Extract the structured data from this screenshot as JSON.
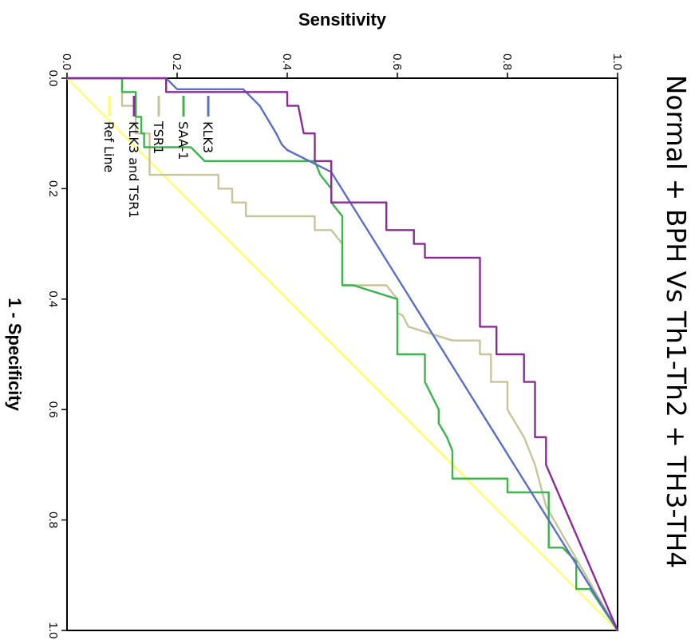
{
  "chart_data": {
    "type": "line",
    "title": "Normal + BPH Vs Th1-Th2 + TH3-TH4",
    "xlabel": "1 - Specificity",
    "ylabel": "Sensitivity",
    "xlim": [
      0,
      1
    ],
    "ylim": [
      0,
      1
    ],
    "xticks": [
      "0.0",
      "0.2",
      "0.4",
      "0.6",
      "0.8",
      "1.0"
    ],
    "yticks": [
      "0.0",
      "0.2",
      "0.4",
      "0.6",
      "0.8",
      "1.0"
    ],
    "grid": false,
    "legend_position": "bottom-left",
    "series": [
      {
        "name": "KLK3",
        "color": "#5a6fc4",
        "points": [
          [
            0,
            0
          ],
          [
            0,
            0.18
          ],
          [
            0.02,
            0.2
          ],
          [
            0.02,
            0.32
          ],
          [
            0.05,
            0.35
          ],
          [
            0.1,
            0.38
          ],
          [
            0.1,
            0.38
          ],
          [
            0.12,
            0.39
          ],
          [
            0.13,
            0.4
          ],
          [
            0.15,
            0.44
          ],
          [
            0.17,
            0.48
          ],
          [
            1,
            1
          ]
        ]
      },
      {
        "name": "SAA-1",
        "color": "#39b54a",
        "points": [
          [
            0,
            0
          ],
          [
            0,
            0.1
          ],
          [
            0.025,
            0.1
          ],
          [
            0.025,
            0.125
          ],
          [
            0.07,
            0.125
          ],
          [
            0.07,
            0.135
          ],
          [
            0.1,
            0.135
          ],
          [
            0.1,
            0.14
          ],
          [
            0.125,
            0.14
          ],
          [
            0.125,
            0.225
          ],
          [
            0.125,
            0.225
          ],
          [
            0.15,
            0.25
          ],
          [
            0.15,
            0.45
          ],
          [
            0.15,
            0.45
          ],
          [
            0.175,
            0.46
          ],
          [
            0.2,
            0.48
          ],
          [
            0.2,
            0.48
          ],
          [
            0.225,
            0.48
          ],
          [
            0.25,
            0.5
          ],
          [
            0.25,
            0.5
          ],
          [
            0.3,
            0.5
          ],
          [
            0.375,
            0.5
          ],
          [
            0.375,
            0.52
          ],
          [
            0.4,
            0.6
          ],
          [
            0.5,
            0.6
          ],
          [
            0.5,
            0.65
          ],
          [
            0.55,
            0.65
          ],
          [
            0.6,
            0.675
          ],
          [
            0.625,
            0.675
          ],
          [
            0.65,
            0.69
          ],
          [
            0.675,
            0.7
          ],
          [
            0.725,
            0.7
          ],
          [
            0.725,
            0.8
          ],
          [
            0.75,
            0.8
          ],
          [
            0.75,
            0.875
          ],
          [
            0.85,
            0.875
          ],
          [
            0.85,
            0.9
          ],
          [
            0.875,
            0.925
          ],
          [
            0.925,
            0.925
          ],
          [
            0.925,
            0.95
          ],
          [
            1,
            1
          ]
        ]
      },
      {
        "name": "TSR1",
        "color": "#c8c49a",
        "points": [
          [
            0,
            0
          ],
          [
            0,
            0.1
          ],
          [
            0.05,
            0.1
          ],
          [
            0.05,
            0.125
          ],
          [
            0.1,
            0.125
          ],
          [
            0.1,
            0.15
          ],
          [
            0.175,
            0.15
          ],
          [
            0.175,
            0.275
          ],
          [
            0.2,
            0.275
          ],
          [
            0.2,
            0.3
          ],
          [
            0.225,
            0.3
          ],
          [
            0.225,
            0.325
          ],
          [
            0.25,
            0.325
          ],
          [
            0.25,
            0.45
          ],
          [
            0.275,
            0.45
          ],
          [
            0.275,
            0.48
          ],
          [
            0.3,
            0.5
          ],
          [
            0.3,
            0.5
          ],
          [
            0.375,
            0.5
          ],
          [
            0.375,
            0.52
          ],
          [
            0.375,
            0.58
          ],
          [
            0.4,
            0.6
          ],
          [
            0.425,
            0.6
          ],
          [
            0.43,
            0.61
          ],
          [
            0.45,
            0.62
          ],
          [
            0.475,
            0.7
          ],
          [
            0.475,
            0.75
          ],
          [
            0.5,
            0.75
          ],
          [
            0.5,
            0.77
          ],
          [
            0.55,
            0.77
          ],
          [
            0.55,
            0.8
          ],
          [
            0.6,
            0.8
          ],
          [
            0.65,
            0.83
          ],
          [
            0.7,
            0.85
          ],
          [
            0.775,
            0.87
          ],
          [
            1,
            1
          ]
        ]
      },
      {
        "name": "KLK3 and TSR1",
        "color": "#8b2c96",
        "points": [
          [
            0,
            0
          ],
          [
            0,
            0.18
          ],
          [
            0.025,
            0.18
          ],
          [
            0.025,
            0.4
          ],
          [
            0.05,
            0.4
          ],
          [
            0.05,
            0.42
          ],
          [
            0.1,
            0.43
          ],
          [
            0.1,
            0.45
          ],
          [
            0.15,
            0.45
          ],
          [
            0.15,
            0.48
          ],
          [
            0.225,
            0.48
          ],
          [
            0.225,
            0.58
          ],
          [
            0.275,
            0.58
          ],
          [
            0.275,
            0.63
          ],
          [
            0.3,
            0.63
          ],
          [
            0.3,
            0.65
          ],
          [
            0.325,
            0.65
          ],
          [
            0.325,
            0.75
          ],
          [
            0.45,
            0.75
          ],
          [
            0.45,
            0.78
          ],
          [
            0.5,
            0.78
          ],
          [
            0.5,
            0.83
          ],
          [
            0.55,
            0.83
          ],
          [
            0.55,
            0.85
          ],
          [
            0.65,
            0.85
          ],
          [
            0.65,
            0.87
          ],
          [
            0.7,
            0.87
          ],
          [
            1,
            1
          ]
        ]
      },
      {
        "name": "Ref Line",
        "color": "#ffff66",
        "points": [
          [
            0,
            0
          ],
          [
            1,
            1
          ]
        ]
      }
    ]
  }
}
